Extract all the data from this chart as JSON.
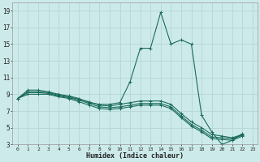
{
  "xlabel": "Humidex (Indice chaleur)",
  "bg_color": "#cdeaea",
  "grid_color": "#b8d8d8",
  "line_color": "#1a6b5a",
  "xlim": [
    -0.5,
    23.5
  ],
  "ylim": [
    3,
    20
  ],
  "xtick_labels": [
    "0",
    "1",
    "2",
    "3",
    "4",
    "5",
    "6",
    "7",
    "8",
    "9",
    "10",
    "11",
    "12",
    "13",
    "14",
    "15",
    "16",
    "17",
    "18",
    "19",
    "20",
    "21",
    "22",
    "23"
  ],
  "yticks": [
    3,
    5,
    7,
    9,
    11,
    13,
    15,
    17,
    19
  ],
  "lines": [
    {
      "x": [
        0,
        1,
        2,
        3,
        4,
        5,
        6,
        7,
        8,
        9,
        10,
        11,
        12,
        13,
        14,
        15,
        16,
        17,
        18,
        19,
        20,
        21,
        22
      ],
      "y": [
        8.5,
        9.5,
        9.5,
        9.3,
        9.0,
        8.8,
        8.5,
        8.0,
        7.8,
        7.8,
        8.0,
        10.5,
        14.5,
        14.5,
        18.8,
        15.0,
        15.5,
        15.0,
        6.5,
        4.5,
        3.0,
        3.5,
        4.3
      ]
    },
    {
      "x": [
        0,
        1,
        2,
        3,
        4,
        5,
        6,
        7,
        8,
        9,
        10,
        11,
        12,
        13,
        14,
        15,
        16,
        17,
        18,
        19,
        20,
        21,
        22
      ],
      "y": [
        8.5,
        9.3,
        9.3,
        9.2,
        8.9,
        8.7,
        8.4,
        8.1,
        7.7,
        7.6,
        7.8,
        8.0,
        8.2,
        8.2,
        8.2,
        7.8,
        6.7,
        5.7,
        5.0,
        4.2,
        4.0,
        3.8,
        4.2
      ]
    },
    {
      "x": [
        0,
        1,
        2,
        3,
        4,
        5,
        6,
        7,
        8,
        9,
        10,
        11,
        12,
        13,
        14,
        15,
        16,
        17,
        18,
        19,
        20,
        21,
        22
      ],
      "y": [
        8.5,
        9.2,
        9.2,
        9.1,
        8.8,
        8.6,
        8.3,
        7.9,
        7.5,
        7.4,
        7.5,
        7.7,
        7.9,
        7.9,
        7.9,
        7.5,
        6.4,
        5.4,
        4.7,
        3.9,
        3.8,
        3.7,
        4.1
      ]
    },
    {
      "x": [
        0,
        1,
        2,
        3,
        4,
        5,
        6,
        7,
        8,
        9,
        10,
        11,
        12,
        13,
        14,
        15,
        16,
        17,
        18,
        19,
        20,
        21,
        22
      ],
      "y": [
        8.5,
        9.0,
        9.0,
        9.0,
        8.7,
        8.5,
        8.1,
        7.7,
        7.3,
        7.2,
        7.3,
        7.5,
        7.7,
        7.7,
        7.7,
        7.3,
        6.2,
        5.2,
        4.5,
        3.7,
        3.6,
        3.5,
        4.0
      ]
    }
  ]
}
